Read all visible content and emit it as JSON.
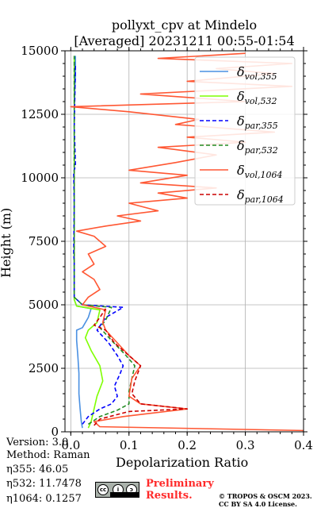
{
  "chart_data": {
    "type": "line",
    "title": "pollyxt_cpv at Mindelo",
    "subtitle": "[Averaged] 20231211 00:55-01:54",
    "xlabel": "Depolarization Ratio",
    "ylabel": "Height (m)",
    "xlim": [
      -0.01,
      0.4
    ],
    "ylim": [
      0,
      15000
    ],
    "xticks": [
      "0.0",
      "0.1",
      "0.2",
      "0.3",
      "0.4"
    ],
    "yticks": [
      "0",
      "2500",
      "5000",
      "7500",
      "10000",
      "12500",
      "15000"
    ],
    "grid": true,
    "legend_position": "upper right",
    "legend": [
      {
        "label_base": "δ",
        "label_sub": "vol,355",
        "color": "#4a90e2",
        "dash": "solid"
      },
      {
        "label_base": "δ",
        "label_sub": "vol,532",
        "color": "#7fff00",
        "dash": "solid"
      },
      {
        "label_base": "δ",
        "label_sub": "par,355",
        "color": "#0000ff",
        "dash": "dashed"
      },
      {
        "label_base": "δ",
        "label_sub": "par,532",
        "color": "#228b22",
        "dash": "dashed"
      },
      {
        "label_base": "δ",
        "label_sub": "vol,1064",
        "color": "#ff5733",
        "dash": "solid"
      },
      {
        "label_base": "δ",
        "label_sub": "par,1064",
        "color": "#cc0000",
        "dash": "dashed"
      }
    ],
    "series": [
      {
        "name": "δvol,355",
        "color": "#4a90e2",
        "dash": "solid",
        "points": [
          [
            0.02,
            150
          ],
          [
            0.018,
            400
          ],
          [
            0.016,
            900
          ],
          [
            0.014,
            1500
          ],
          [
            0.014,
            2300
          ],
          [
            0.012,
            3000
          ],
          [
            0.01,
            3600
          ],
          [
            0.01,
            4000
          ],
          [
            0.02,
            4100
          ],
          [
            0.03,
            4500
          ],
          [
            0.035,
            4850
          ],
          [
            0.01,
            4950
          ],
          [
            0.006,
            5200
          ],
          [
            0.006,
            6500
          ],
          [
            0.006,
            8000
          ],
          [
            0.006,
            10000
          ],
          [
            0.006,
            12500
          ],
          [
            0.007,
            13500
          ],
          [
            0.008,
            14000
          ],
          [
            0.008,
            14800
          ]
        ]
      },
      {
        "name": "δvol,532",
        "color": "#7fff00",
        "dash": "solid",
        "points": [
          [
            0.03,
            150
          ],
          [
            0.035,
            400
          ],
          [
            0.04,
            900
          ],
          [
            0.045,
            1400
          ],
          [
            0.055,
            2000
          ],
          [
            0.05,
            2600
          ],
          [
            0.035,
            3200
          ],
          [
            0.025,
            3700
          ],
          [
            0.03,
            4000
          ],
          [
            0.045,
            4300
          ],
          [
            0.05,
            4800
          ],
          [
            0.01,
            4950
          ],
          [
            0.006,
            5200
          ],
          [
            0.006,
            7000
          ],
          [
            0.006,
            9000
          ],
          [
            0.006,
            11000
          ],
          [
            0.006,
            13000
          ],
          [
            0.006,
            14800
          ]
        ]
      },
      {
        "name": "δpar,355",
        "color": "#0000ff",
        "dash": "dashed",
        "points": [
          [
            0.02,
            300
          ],
          [
            0.03,
            600
          ],
          [
            0.05,
            900
          ],
          [
            0.07,
            1100
          ],
          [
            0.08,
            1400
          ],
          [
            0.075,
            1800
          ],
          [
            0.085,
            2300
          ],
          [
            0.09,
            2600
          ],
          [
            0.08,
            3000
          ],
          [
            0.065,
            3500
          ],
          [
            0.045,
            4000
          ],
          [
            0.06,
            4500
          ],
          [
            0.09,
            4900
          ],
          [
            0.02,
            5000
          ],
          [
            0.006,
            5300
          ],
          [
            0.006,
            6700
          ],
          [
            0.005,
            7000
          ],
          [
            0.006,
            9000
          ],
          [
            0.005,
            10200
          ],
          [
            0.008,
            10500
          ],
          [
            0.006,
            12000
          ],
          [
            0.008,
            14500
          ]
        ]
      },
      {
        "name": "δpar,532",
        "color": "#228b22",
        "dash": "dashed",
        "points": [
          [
            0.03,
            300
          ],
          [
            0.05,
            600
          ],
          [
            0.08,
            850
          ],
          [
            0.1,
            1100
          ],
          [
            0.1,
            1600
          ],
          [
            0.105,
            2100
          ],
          [
            0.11,
            2600
          ],
          [
            0.095,
            3000
          ],
          [
            0.07,
            3600
          ],
          [
            0.05,
            4100
          ],
          [
            0.06,
            4400
          ],
          [
            0.07,
            4900
          ],
          [
            0.02,
            5000
          ],
          [
            0.006,
            5300
          ],
          [
            0.006,
            14800
          ]
        ]
      },
      {
        "name": "δvol,1064",
        "color": "#ff5733",
        "dash": "solid",
        "points": [
          [
            0.4,
            50
          ],
          [
            0.05,
            200
          ],
          [
            0.04,
            400
          ],
          [
            0.09,
            600
          ],
          [
            0.2,
            900
          ],
          [
            0.12,
            1100
          ],
          [
            0.1,
            1400
          ],
          [
            0.105,
            2100
          ],
          [
            0.12,
            2600
          ],
          [
            0.1,
            3000
          ],
          [
            0.08,
            3500
          ],
          [
            0.06,
            4000
          ],
          [
            0.055,
            4300
          ],
          [
            0.06,
            4800
          ],
          [
            0.02,
            5000
          ],
          [
            0.03,
            5300
          ],
          [
            0.05,
            5600
          ],
          [
            0.04,
            6000
          ],
          [
            0.02,
            6300
          ],
          [
            0.04,
            6600
          ],
          [
            0.03,
            7000
          ],
          [
            0.06,
            7300
          ],
          [
            0.04,
            7700
          ],
          [
            0.01,
            7900
          ],
          [
            0.06,
            8100
          ],
          [
            0.12,
            8300
          ],
          [
            0.08,
            8500
          ],
          [
            0.15,
            8700
          ],
          [
            0.1,
            9000
          ],
          [
            0.2,
            9200
          ],
          [
            0.15,
            9400
          ],
          [
            0.25,
            9600
          ],
          [
            0.12,
            9800
          ],
          [
            0.2,
            10100
          ],
          [
            0.1,
            10300
          ],
          [
            0.18,
            10600
          ],
          [
            0.25,
            10900
          ],
          [
            0.15,
            11200
          ],
          [
            0.3,
            11400
          ],
          [
            0.2,
            11600
          ],
          [
            0.35,
            11800
          ],
          [
            0.18,
            12100
          ],
          [
            0.22,
            12300
          ],
          [
            0.1,
            12600
          ],
          [
            0.0,
            12800
          ],
          [
            0.3,
            13000
          ],
          [
            0.12,
            13300
          ],
          [
            0.38,
            13600
          ],
          [
            0.2,
            13800
          ],
          [
            0.35,
            14100
          ],
          [
            0.25,
            14300
          ],
          [
            0.38,
            14500
          ],
          [
            0.15,
            14700
          ],
          [
            0.3,
            14900
          ]
        ]
      },
      {
        "name": "δpar,1064",
        "color": "#cc0000",
        "dash": "dashed",
        "points": [
          [
            0.04,
            250
          ],
          [
            0.05,
            500
          ],
          [
            0.1,
            800
          ],
          [
            0.2,
            900
          ],
          [
            0.12,
            1100
          ],
          [
            0.105,
            1500
          ],
          [
            0.11,
            2000
          ],
          [
            0.12,
            2600
          ],
          [
            0.1,
            3000
          ],
          [
            0.075,
            3500
          ],
          [
            0.06,
            4000
          ],
          [
            0.04,
            4200
          ],
          [
            0.05,
            4500
          ],
          [
            0.06,
            4850
          ]
        ]
      }
    ]
  },
  "footer": {
    "version_line": "Version: 3.0",
    "method_line": "Method: Raman",
    "eta355_line": "η355:  46.05",
    "eta532_line": "η532: 11.7478",
    "eta1064_line": "η1064: 0.1257",
    "preliminary_1": "Preliminary",
    "preliminary_2": "Results.",
    "copyright_1": "© TROPOS & OSCM 2023.",
    "copyright_2": "CC BY SA 4.0 License.",
    "license_badge": "cc-by-sa-icon"
  }
}
